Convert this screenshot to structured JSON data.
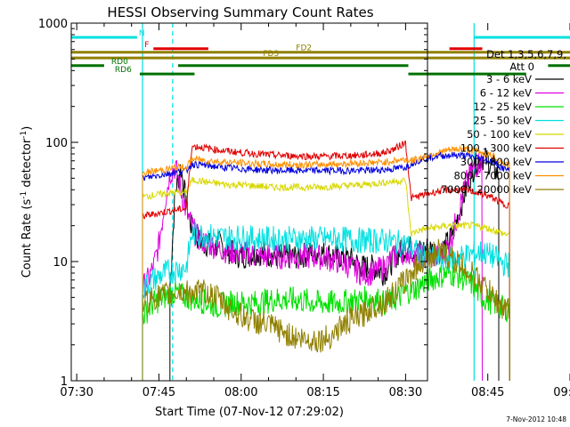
{
  "chart_data": {
    "type": "line",
    "title": "HESSI Observing Summary Count Rates",
    "xlabel": "Start Time (07-Nov-12 07:29:02)",
    "ylabel": "Count Rate (s",
    "ylabel_sup1": "-1",
    "ylabel_mid": " detector",
    "ylabel_sup2": "-1",
    "ylabel_end": ")",
    "ylog": true,
    "ylim": [
      1,
      1000
    ],
    "xlim_minutes": [
      -1,
      64
    ],
    "x_ticks": [
      {
        "label": "07:30",
        "min": 0
      },
      {
        "label": "07:45",
        "min": 15
      },
      {
        "label": "08:00",
        "min": 30
      },
      {
        "label": "08:15",
        "min": 45
      },
      {
        "label": "08:30",
        "min": 60
      },
      {
        "label": "08:45",
        "min": 75
      },
      {
        "label": "09:00",
        "min": 90
      }
    ],
    "y_ticks": [
      {
        "label": "1",
        "value": 1
      },
      {
        "label": "10",
        "value": 10
      },
      {
        "label": "100",
        "value": 100
      },
      {
        "label": "1000",
        "value": 1000
      }
    ],
    "legend": {
      "header1": "Det 1,3,5,6,7,9,",
      "header2": "Att 0",
      "entries": [
        {
          "label": "3 - 6 keV",
          "color": "#000000"
        },
        {
          "label": "6 - 12 keV",
          "color": "#e000e0"
        },
        {
          "label": "12 - 25 keV",
          "color": "#00e000"
        },
        {
          "label": "25 - 50 keV",
          "color": "#00e0e0"
        },
        {
          "label": "50 - 100 keV",
          "color": "#d8d800"
        },
        {
          "label": "100 - 300 keV",
          "color": "#e00000"
        },
        {
          "label": "300 - 800 keV",
          "color": "#0000e0"
        },
        {
          "label": "800 - 7000 keV",
          "color": "#ff9000"
        },
        {
          "label": "7000 - 20000 keV",
          "color": "#908000"
        }
      ]
    },
    "flag_bars": [
      {
        "label": "N",
        "color": "#00e0e0",
        "segments": [
          [
            -1,
            11
          ],
          [
            72.5,
            94
          ]
        ],
        "value": 760
      },
      {
        "label": "F",
        "color": "#e00000",
        "segments": [
          [
            14,
            24
          ]
        ],
        "value": 610
      },
      {
        "label": "FD2",
        "color": "#908000",
        "segments": [
          [
            -1,
            94
          ]
        ],
        "value": 570
      },
      {
        "label": "FD3",
        "color": "#908000",
        "segments": [
          [
            -1,
            94
          ]
        ],
        "value": 510
      },
      {
        "label": "RD0",
        "color": "#007000",
        "segments": [
          [
            -1,
            5
          ],
          [
            18.5,
            60.5
          ],
          [
            86,
            94
          ]
        ],
        "value": 440
      },
      {
        "label": "RD6",
        "color": "#007000",
        "segments": [
          [
            11.5,
            21.5
          ],
          [
            60.5,
            82
          ]
        ],
        "value": 375
      }
    ],
    "flag_extra_segments": [
      {
        "color": "#e00000",
        "from": 68,
        "to": 74,
        "value": 610
      }
    ],
    "vertical_lines": [
      {
        "min": 12,
        "color": "#00e0e0",
        "dashed": false
      },
      {
        "min": 17.5,
        "color": "#00e0e0",
        "dashed": true
      },
      {
        "min": 72.5,
        "color": "#00e0e0",
        "dashed": false
      },
      {
        "min": 92,
        "color": "#00e0e0",
        "dashed": true
      }
    ],
    "series": [
      {
        "name": "3 - 6 keV",
        "color": "#000000",
        "x": [
          17,
          18,
          19,
          20,
          21,
          22,
          23,
          24,
          25,
          26,
          27,
          28,
          30,
          33,
          37,
          40,
          44,
          48,
          50,
          52,
          54,
          56,
          57,
          58,
          59,
          60,
          61,
          62,
          64,
          66,
          67,
          68,
          69,
          70,
          71,
          72,
          73,
          74,
          75,
          76,
          77
        ],
        "y": [
          6,
          40,
          62,
          30,
          19,
          16,
          14,
          14,
          13,
          14,
          13,
          12,
          11,
          12,
          11,
          11,
          12,
          11,
          10.5,
          9,
          9,
          8,
          9,
          11,
          12,
          13,
          13,
          12,
          13,
          12,
          13,
          15,
          20,
          28,
          40,
          55,
          70,
          75,
          70,
          62,
          52
        ]
      },
      {
        "name": "6 - 12 keV",
        "color": "#e000e0",
        "x": [
          12,
          13,
          14,
          15,
          16,
          17,
          18,
          19,
          20,
          21,
          22,
          24,
          26,
          28,
          30,
          33,
          36,
          40,
          44,
          48,
          50,
          52,
          54,
          56,
          58,
          59,
          60,
          61,
          62,
          64,
          66,
          67,
          68,
          69,
          70,
          71,
          72,
          73,
          74
        ],
        "y": [
          6,
          7,
          9,
          14,
          30,
          55,
          62,
          40,
          26,
          20,
          16,
          14,
          13,
          12,
          12,
          11,
          11,
          11,
          11,
          10,
          9,
          8,
          8,
          9,
          11,
          12,
          12,
          12,
          11,
          11,
          11,
          12,
          14,
          20,
          30,
          45,
          55,
          65,
          70
        ]
      },
      {
        "name": "12 - 25 keV",
        "color": "#00e000",
        "x": [
          12,
          14,
          16,
          18,
          20,
          22,
          24,
          26,
          28,
          30,
          33,
          36,
          40,
          44,
          48,
          52,
          54,
          56,
          58,
          60,
          62,
          64,
          66,
          68,
          70,
          72,
          74,
          76,
          78,
          79
        ],
        "y": [
          3.5,
          4.5,
          5,
          5.5,
          5,
          4.8,
          4.5,
          4.2,
          4.5,
          4.5,
          4.5,
          4.8,
          4.8,
          4.5,
          4.5,
          4.8,
          5,
          4.5,
          4.8,
          5.5,
          6,
          7,
          7.5,
          8,
          7.5,
          6.5,
          5,
          4.5,
          4,
          4
        ]
      },
      {
        "name": "25 - 50 keV",
        "color": "#00e0e0",
        "x": [
          12,
          14,
          16,
          18,
          20,
          21,
          22,
          24,
          26,
          28,
          30,
          33,
          36,
          40,
          44,
          48,
          52,
          56,
          58,
          60,
          62,
          64,
          66,
          68,
          70,
          72,
          74,
          76,
          78,
          79
        ],
        "y": [
          6,
          7,
          8,
          8.5,
          9,
          17,
          17,
          16.5,
          16,
          16,
          16,
          15.5,
          15.5,
          15.5,
          15.5,
          15.5,
          15,
          15,
          14.5,
          14,
          12,
          11,
          10.5,
          10.5,
          11,
          11.5,
          12,
          11,
          9.5,
          9.5
        ]
      },
      {
        "name": "50 - 100 keV",
        "color": "#d8d800",
        "x": [
          12,
          14,
          16,
          18,
          20,
          21,
          22,
          24,
          26,
          28,
          30,
          33,
          36,
          40,
          44,
          48,
          52,
          56,
          58,
          60,
          61,
          62,
          64,
          66,
          68,
          70,
          72,
          74,
          76,
          78,
          79
        ],
        "y": [
          35,
          36,
          37,
          38,
          38,
          48,
          48,
          46,
          45,
          44,
          44,
          43,
          42,
          42,
          42,
          43,
          44,
          46,
          47,
          48,
          17,
          18,
          19,
          19.5,
          20,
          20,
          20,
          19.5,
          18.5,
          17,
          17
        ]
      },
      {
        "name": "100 - 300 keV",
        "color": "#e00000",
        "x": [
          12,
          14,
          16,
          18,
          20,
          21,
          22,
          24,
          26,
          28,
          30,
          33,
          36,
          40,
          44,
          48,
          52,
          56,
          58,
          60,
          61,
          62,
          64,
          66,
          68,
          70,
          72,
          74,
          76,
          78,
          79
        ],
        "y": [
          24,
          25,
          26,
          27,
          28,
          92,
          92,
          89,
          86,
          84,
          82,
          80,
          78,
          77,
          76,
          77,
          78,
          82,
          88,
          100,
          34,
          35,
          37,
          39,
          40,
          40,
          39,
          37,
          34,
          30,
          30
        ]
      },
      {
        "name": "300 - 800 keV",
        "color": "#0000e0",
        "x": [
          12,
          14,
          16,
          18,
          20,
          21,
          22,
          24,
          26,
          28,
          30,
          33,
          36,
          40,
          44,
          48,
          52,
          56,
          58,
          60,
          61,
          62,
          64,
          66,
          68,
          70,
          72,
          74,
          76,
          78,
          79
        ],
        "y": [
          50,
          52,
          54,
          56,
          58,
          66,
          65,
          64,
          62,
          61,
          60,
          59,
          58,
          58,
          58,
          58,
          58,
          59,
          60,
          62,
          66,
          70,
          74,
          77,
          78,
          78,
          76,
          73,
          68,
          60,
          58
        ]
      },
      {
        "name": "800 - 7000 keV",
        "color": "#ff9000",
        "x": [
          12,
          14,
          16,
          18,
          20,
          21,
          22,
          24,
          26,
          28,
          30,
          33,
          36,
          40,
          44,
          48,
          52,
          56,
          58,
          60,
          61,
          62,
          64,
          66,
          68,
          70,
          72,
          74,
          76,
          78,
          79
        ],
        "y": [
          55,
          57,
          59,
          61,
          62,
          72,
          72,
          70,
          69,
          68,
          67,
          66,
          65,
          65,
          65,
          66,
          67,
          68,
          70,
          72,
          70,
          72,
          78,
          82,
          86,
          88,
          86,
          82,
          76,
          66,
          64
        ]
      },
      {
        "name": "7000 - 20000 keV",
        "color": "#908000",
        "x": [
          12,
          14,
          16,
          18,
          20,
          22,
          24,
          26,
          28,
          30,
          32,
          34,
          36,
          38,
          40,
          42,
          44,
          46,
          48,
          50,
          52,
          54,
          56,
          58,
          60,
          62,
          64,
          66,
          68,
          70,
          72,
          74,
          76,
          78,
          79
        ],
        "y": [
          4.5,
          5,
          5.2,
          5.5,
          5.5,
          5.5,
          5.5,
          4.8,
          4,
          3.5,
          3.2,
          3,
          2.8,
          2.5,
          2.3,
          2.2,
          2.2,
          2.3,
          2.8,
          3.2,
          3.5,
          4.2,
          4.5,
          5.5,
          7,
          9,
          11,
          12,
          11,
          9.5,
          8,
          6.5,
          5,
          4,
          4
        ]
      }
    ]
  },
  "footer": {
    "timestamp": "7-Nov-2012 10:48"
  }
}
